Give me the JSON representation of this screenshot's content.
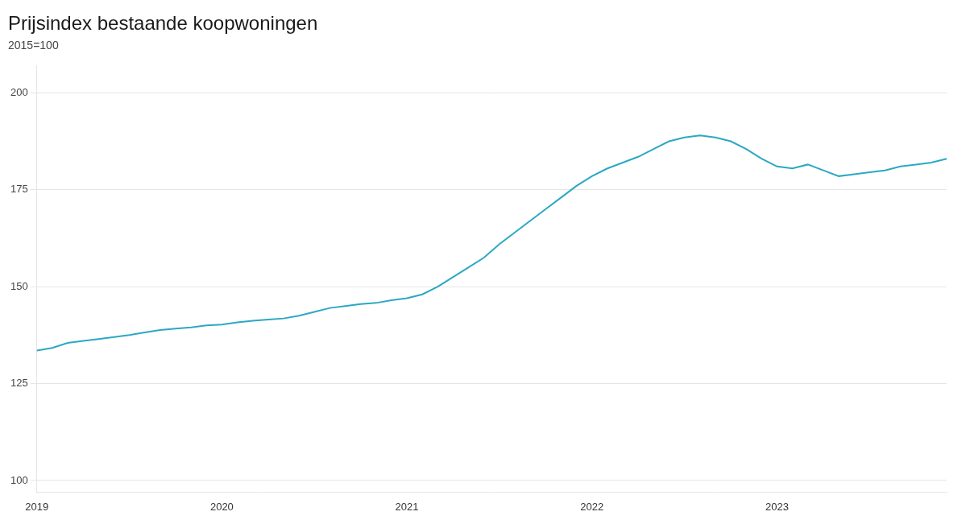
{
  "chart_data": {
    "type": "line",
    "title": "Prijsindex bestaande koopwoningen",
    "subtitle": "2015=100",
    "categories": [
      "2019",
      null,
      null,
      null,
      null,
      null,
      null,
      null,
      null,
      null,
      null,
      null,
      "2020",
      null,
      null,
      null,
      null,
      null,
      null,
      null,
      null,
      null,
      null,
      null,
      "2021",
      null,
      null,
      null,
      null,
      null,
      null,
      null,
      null,
      null,
      null,
      null,
      "2022",
      null,
      null,
      null,
      null,
      null,
      null,
      null,
      null,
      null,
      null,
      null,
      "2023",
      null,
      null,
      null,
      null,
      null,
      null,
      null,
      null,
      null,
      null,
      null
    ],
    "values": [
      133.5,
      134.2,
      135.5,
      136.0,
      136.5,
      137.0,
      137.5,
      138.2,
      138.8,
      139.2,
      139.5,
      140.0,
      140.2,
      140.8,
      141.2,
      141.5,
      141.8,
      142.5,
      143.5,
      144.5,
      145.0,
      145.5,
      145.8,
      146.5,
      147.0,
      148.0,
      150.0,
      152.5,
      155.0,
      157.5,
      161.0,
      164.0,
      167.0,
      170.0,
      173.0,
      176.0,
      178.5,
      180.5,
      182.0,
      183.5,
      185.5,
      187.5,
      188.5,
      189.0,
      188.5,
      187.5,
      185.5,
      183.0,
      181.0,
      180.5,
      181.5,
      180.0,
      178.5,
      179.0,
      179.5,
      180.0,
      181.0,
      181.5,
      182.0,
      183.0
    ],
    "color": "#2ba8c4",
    "ylim": [
      97,
      207
    ],
    "yticks": [
      100,
      125,
      150,
      175,
      200
    ],
    "grid": true
  }
}
